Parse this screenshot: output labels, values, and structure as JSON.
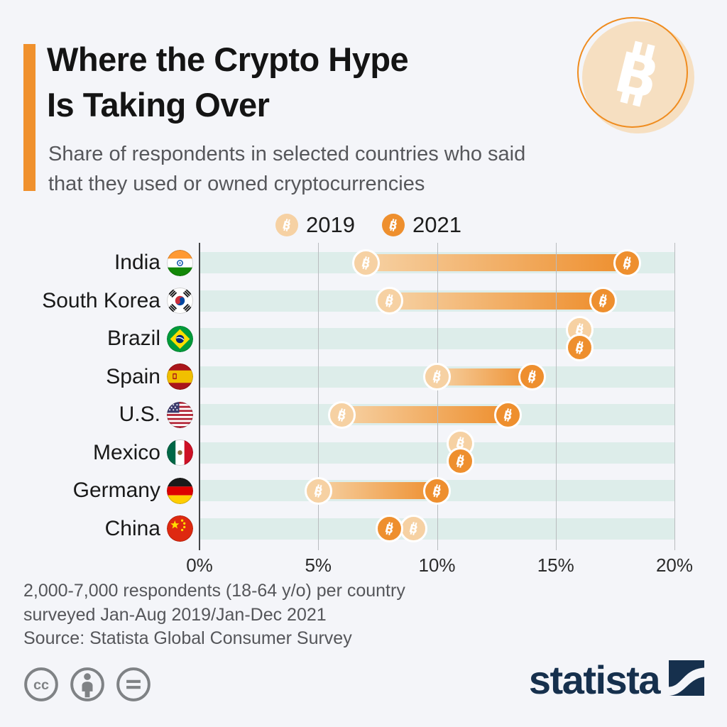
{
  "header": {
    "title": [
      "Where the Crypto Hype",
      "Is Taking Over"
    ],
    "subtitle": [
      "Share of respondents in selected countries who said",
      "that they used or owned cryptocurrencies"
    ]
  },
  "legend": {
    "items": [
      {
        "label": "2019",
        "color": "#f6d1a3"
      },
      {
        "label": "2021",
        "color": "#ee8f2e"
      }
    ]
  },
  "chart_data": {
    "type": "bar",
    "subtype": "dumbbell",
    "title": "Where the Crypto Hype Is Taking Over",
    "categories": [
      "India",
      "South Korea",
      "Brazil",
      "Spain",
      "U.S.",
      "Mexico",
      "Germany",
      "China"
    ],
    "flags": [
      "india",
      "south-korea",
      "brazil",
      "spain",
      "us",
      "mexico",
      "germany",
      "china"
    ],
    "series": [
      {
        "name": "2019",
        "color": "#f6d1a3",
        "values": [
          7,
          8,
          16,
          10,
          6,
          11,
          5,
          9
        ]
      },
      {
        "name": "2021",
        "color": "#ee8f2e",
        "values": [
          18,
          17,
          16,
          14,
          13,
          11,
          10,
          8
        ]
      }
    ],
    "unit": "%",
    "xlim": [
      0,
      20
    ],
    "xticks": [
      0,
      5,
      10,
      15,
      20
    ],
    "xtick_labels": [
      "0%",
      "5%",
      "10%",
      "15%",
      "20%"
    ],
    "grid": true,
    "legend_position": "top",
    "marker": "bitcoin-coin"
  },
  "footnote": {
    "lines": [
      "2,000-7,000 respondents (18-64 y/o) per country",
      "surveyed Jan-Aug 2019/Jan-Dec 2021"
    ],
    "source": "Source: Statista Global Consumer Survey"
  },
  "footer": {
    "license_icons": [
      "cc-icon",
      "attribution-icon",
      "nd-icon"
    ],
    "brand": "statista"
  },
  "colors": {
    "background": "#f4f5f9",
    "accent_orange": "#f0912d",
    "series_2019": "#f6d1a3",
    "series_2021": "#ee8f2e",
    "row_stripe": "#ddedea",
    "navy": "#16304d"
  }
}
